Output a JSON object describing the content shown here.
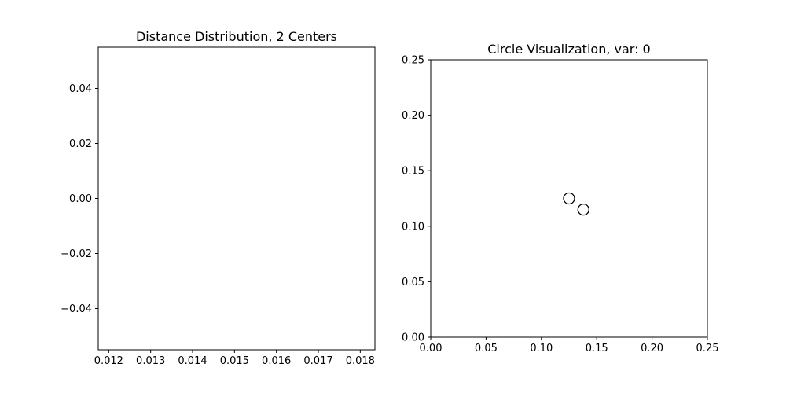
{
  "chart_data": [
    {
      "type": "histogram",
      "title": "Distance Distribution, 2 Centers",
      "xlabel": "",
      "ylabel": "",
      "xlim": [
        0.01175,
        0.01835
      ],
      "ylim": [
        -0.055,
        0.055
      ],
      "xticks": [
        0.012,
        0.013,
        0.014,
        0.015,
        0.016,
        0.017,
        0.018
      ],
      "xtick_labels": [
        "0.012",
        "0.013",
        "0.014",
        "0.015",
        "0.016",
        "0.017",
        "0.018"
      ],
      "yticks": [
        0.04,
        0.02,
        0.0,
        -0.02,
        -0.04
      ],
      "ytick_labels": [
        "0.04",
        "0.02",
        "0.00",
        "−0.02",
        "−0.04"
      ],
      "values": [],
      "grid": false
    },
    {
      "type": "scatter",
      "title": "Circle Visualization, var: 0",
      "xlabel": "",
      "ylabel": "",
      "xlim": [
        0.0,
        0.25
      ],
      "ylim": [
        0.0,
        0.25
      ],
      "xticks": [
        0.0,
        0.05,
        0.1,
        0.15,
        0.2,
        0.25
      ],
      "xtick_labels": [
        "0.00",
        "0.05",
        "0.10",
        "0.15",
        "0.20",
        "0.25"
      ],
      "yticks": [
        0.0,
        0.05,
        0.1,
        0.15,
        0.2,
        0.25
      ],
      "ytick_labels": [
        "0.00",
        "0.05",
        "0.10",
        "0.15",
        "0.20",
        "0.25"
      ],
      "points": [
        {
          "x": 0.125,
          "y": 0.125
        },
        {
          "x": 0.138,
          "y": 0.115
        }
      ],
      "marker": "hollow-circle",
      "grid": false
    }
  ]
}
